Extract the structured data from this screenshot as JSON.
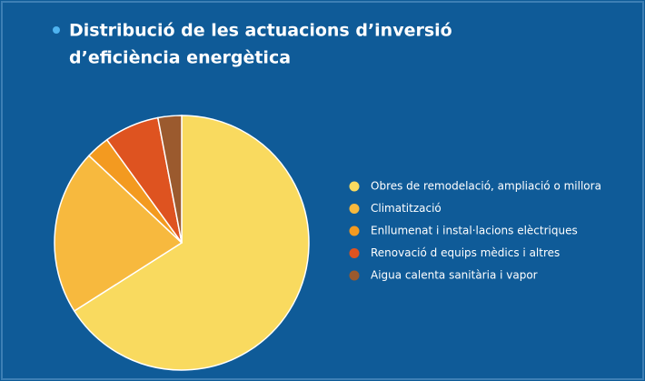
{
  "chart_data": {
    "type": "pie",
    "title": [
      "Distribució de les actuacions d’inversió",
      "d’eficiència energètica"
    ],
    "categories": [
      "Obres de remodelació, ampliació o millora",
      "Climatització",
      "Enllumenat i instal·lacions elèctriques",
      "Renovació d equips mèdics i altres",
      "Aigua calenta sanitària i vapor"
    ],
    "values": [
      66,
      21,
      3,
      7,
      3
    ],
    "colors": [
      "#f9da5f",
      "#f7b93e",
      "#f39a20",
      "#de5320",
      "#9b5a2e"
    ],
    "legend": "right"
  }
}
